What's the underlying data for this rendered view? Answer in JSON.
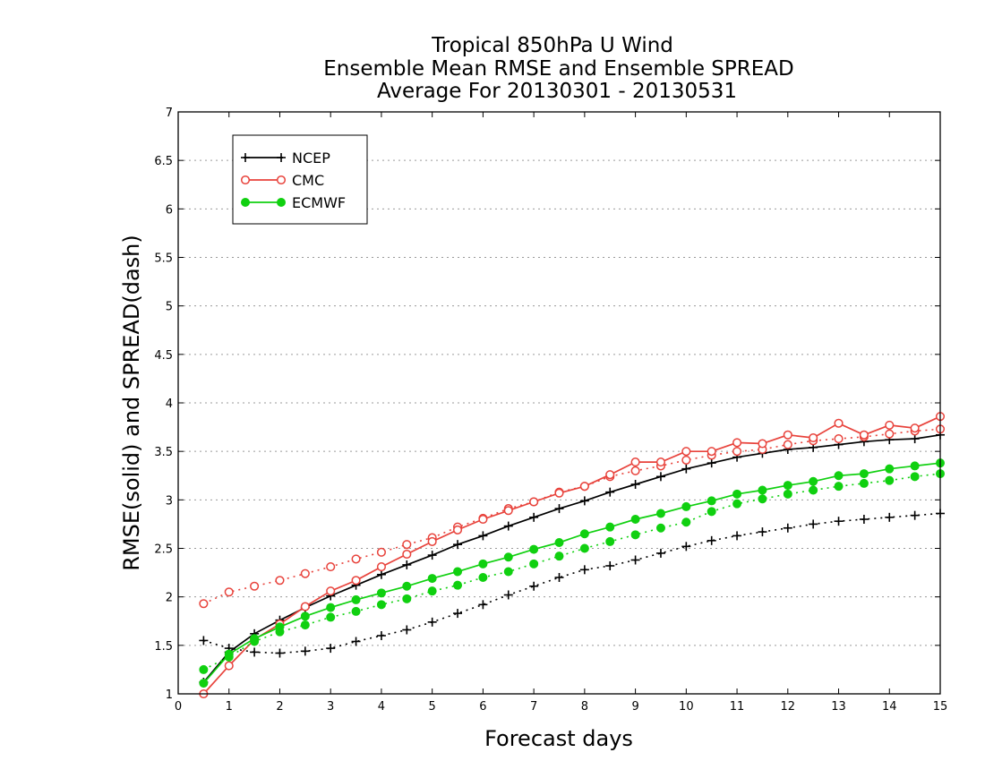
{
  "chart_data": {
    "type": "line",
    "title": [
      "Tropical 850hPa U Wind",
      "Ensemble Mean RMSE and Ensemble SPREAD",
      "Average For 20130301 - 20130531"
    ],
    "xlabel": "Forecast days",
    "ylabel": "RMSE(solid) and SPREAD(dash)",
    "xlim": [
      0,
      15
    ],
    "ylim": [
      1,
      7
    ],
    "xticks": [
      "0",
      "1",
      "2",
      "3",
      "4",
      "5",
      "6",
      "7",
      "8",
      "9",
      "10",
      "11",
      "12",
      "13",
      "14",
      "15"
    ],
    "yticks": [
      "1",
      "1.5",
      "2",
      "2.5",
      "3",
      "3.5",
      "4",
      "4.5",
      "5",
      "5.5",
      "6",
      "6.5",
      "7"
    ],
    "grid": "horizontal-dotted",
    "legend_position": "top-left",
    "x": [
      0.5,
      1,
      1.5,
      2,
      2.5,
      3,
      3.5,
      4,
      4.5,
      5,
      5.5,
      6,
      6.5,
      7,
      7.5,
      8,
      8.5,
      9,
      9.5,
      10,
      10.5,
      11,
      11.5,
      12,
      12.5,
      13,
      13.5,
      14,
      14.5,
      15
    ],
    "series": [
      {
        "name": "NCEP",
        "color": "#000000",
        "marker": "plus",
        "rmse": [
          1.12,
          1.43,
          1.62,
          1.76,
          1.89,
          2.01,
          2.12,
          2.23,
          2.33,
          2.43,
          2.54,
          2.63,
          2.73,
          2.82,
          2.91,
          2.99,
          3.08,
          3.16,
          3.24,
          3.32,
          3.38,
          3.44,
          3.48,
          3.52,
          3.54,
          3.57,
          3.6,
          3.62,
          3.63,
          3.67
        ],
        "spread": [
          1.55,
          1.47,
          1.43,
          1.42,
          1.44,
          1.47,
          1.54,
          1.6,
          1.66,
          1.74,
          1.83,
          1.92,
          2.02,
          2.11,
          2.2,
          2.28,
          2.32,
          2.38,
          2.45,
          2.52,
          2.58,
          2.63,
          2.67,
          2.71,
          2.75,
          2.78,
          2.8,
          2.82,
          2.84,
          2.86
        ]
      },
      {
        "name": "CMC",
        "color": "#e8433c",
        "marker": "circle-open",
        "rmse": [
          1.0,
          1.29,
          1.56,
          1.72,
          1.9,
          2.06,
          2.17,
          2.31,
          2.44,
          2.57,
          2.69,
          2.8,
          2.89,
          2.98,
          3.07,
          3.14,
          3.26,
          3.39,
          3.39,
          3.5,
          3.5,
          3.59,
          3.58,
          3.67,
          3.64,
          3.79,
          3.67,
          3.77,
          3.74,
          3.86
        ],
        "spread": [
          1.93,
          2.05,
          2.11,
          2.17,
          2.24,
          2.31,
          2.39,
          2.46,
          2.54,
          2.61,
          2.72,
          2.81,
          2.91,
          2.98,
          3.08,
          3.14,
          3.24,
          3.3,
          3.35,
          3.41,
          3.46,
          3.5,
          3.52,
          3.57,
          3.61,
          3.63,
          3.65,
          3.68,
          3.71,
          3.73
        ]
      },
      {
        "name": "ECMWF",
        "color": "#10d010",
        "marker": "circle-filled",
        "rmse": [
          1.11,
          1.41,
          1.57,
          1.69,
          1.8,
          1.89,
          1.97,
          2.04,
          2.11,
          2.19,
          2.26,
          2.34,
          2.41,
          2.49,
          2.56,
          2.65,
          2.72,
          2.8,
          2.86,
          2.93,
          2.99,
          3.06,
          3.1,
          3.15,
          3.19,
          3.25,
          3.27,
          3.32,
          3.35,
          3.38
        ],
        "spread": [
          1.25,
          1.38,
          1.54,
          1.64,
          1.71,
          1.79,
          1.85,
          1.92,
          1.98,
          2.06,
          2.12,
          2.2,
          2.26,
          2.34,
          2.42,
          2.5,
          2.57,
          2.64,
          2.71,
          2.77,
          2.88,
          2.96,
          3.01,
          3.06,
          3.1,
          3.14,
          3.17,
          3.2,
          3.24,
          3.27
        ]
      }
    ]
  }
}
